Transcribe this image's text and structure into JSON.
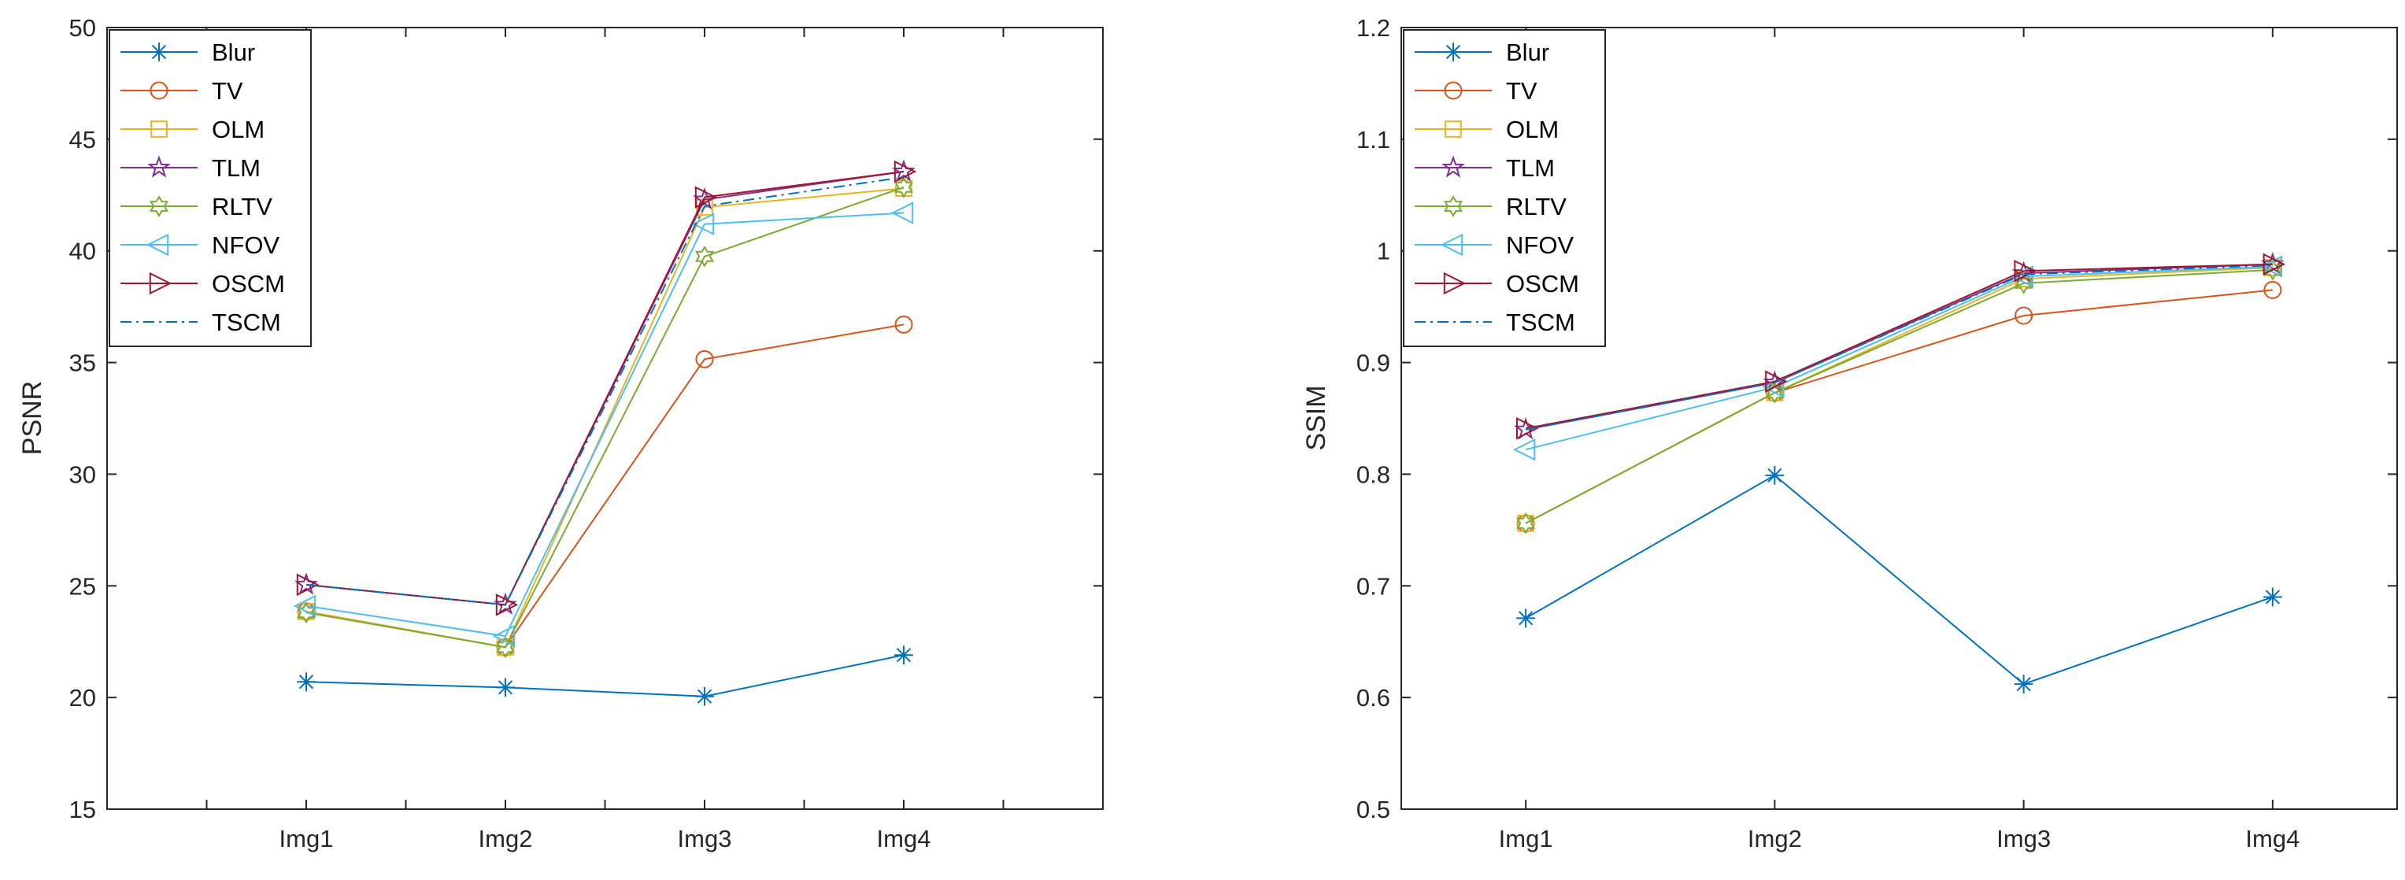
{
  "colors": {
    "Blur": "#0072BD",
    "TV": "#D95319",
    "OLM": "#EDB120",
    "TLM": "#7E2F8E",
    "RLTV": "#77AC30",
    "NFOV": "#4DBEEE",
    "OSCM": "#A2142F",
    "TSCM": "#0072BD",
    "axis": "#262626",
    "background": "#ffffff"
  },
  "chart_data": [
    {
      "type": "line",
      "title": "",
      "xlabel": "",
      "ylabel": "PSNR",
      "categories": [
        "Img1",
        "Img2",
        "Img3",
        "Img4"
      ],
      "x_range": [
        0,
        5
      ],
      "ylim": [
        15,
        50
      ],
      "yticks": [
        "15",
        "20",
        "25",
        "30",
        "35",
        "40",
        "45",
        "50"
      ],
      "legend_position": "top-left",
      "series": [
        {
          "name": "Blur",
          "marker": "asterisk",
          "line": "solid",
          "values": [
            20.7,
            20.45,
            20.05,
            21.9
          ]
        },
        {
          "name": "TV",
          "marker": "circle",
          "line": "solid",
          "values": [
            23.85,
            22.25,
            35.15,
            36.7
          ]
        },
        {
          "name": "OLM",
          "marker": "square",
          "line": "solid",
          "values": [
            23.85,
            22.25,
            41.95,
            42.8
          ]
        },
        {
          "name": "TLM",
          "marker": "star",
          "line": "solid",
          "values": [
            25.05,
            24.15,
            42.3,
            43.55
          ]
        },
        {
          "name": "RLTV",
          "marker": "hexagram",
          "line": "solid",
          "values": [
            23.8,
            22.25,
            39.75,
            42.85
          ]
        },
        {
          "name": "NFOV",
          "marker": "triangle-left",
          "line": "solid",
          "values": [
            24.1,
            22.75,
            41.2,
            41.7
          ]
        },
        {
          "name": "OSCM",
          "marker": "triangle-right",
          "line": "solid",
          "values": [
            25.05,
            24.15,
            42.4,
            43.55
          ]
        },
        {
          "name": "TSCM",
          "marker": "none",
          "line": "dashdot",
          "values": [
            25.05,
            24.15,
            42.0,
            43.3
          ]
        }
      ]
    },
    {
      "type": "line",
      "title": "",
      "xlabel": "",
      "ylabel": "SSIM",
      "categories": [
        "Img1",
        "Img2",
        "Img3",
        "Img4"
      ],
      "x_range": [
        0.5,
        4.5
      ],
      "ylim": [
        0.5,
        1.2
      ],
      "yticks": [
        "0.5",
        "0.6",
        "0.7",
        "0.8",
        "0.9",
        "1",
        "1.1",
        "1.2"
      ],
      "legend_position": "top-left",
      "series": [
        {
          "name": "Blur",
          "marker": "asterisk",
          "line": "solid",
          "values": [
            0.671,
            0.799,
            0.612,
            0.69
          ]
        },
        {
          "name": "TV",
          "marker": "circle",
          "line": "solid",
          "values": [
            0.756,
            0.873,
            0.942,
            0.965
          ]
        },
        {
          "name": "OLM",
          "marker": "square",
          "line": "solid",
          "values": [
            0.756,
            0.873,
            0.975,
            0.985
          ]
        },
        {
          "name": "TLM",
          "marker": "star",
          "line": "solid",
          "values": [
            0.84,
            0.882,
            0.98,
            0.988
          ]
        },
        {
          "name": "RLTV",
          "marker": "hexagram",
          "line": "solid",
          "values": [
            0.756,
            0.873,
            0.971,
            0.983
          ]
        },
        {
          "name": "NFOV",
          "marker": "triangle-left",
          "line": "solid",
          "values": [
            0.822,
            0.878,
            0.977,
            0.986
          ]
        },
        {
          "name": "OSCM",
          "marker": "triangle-right",
          "line": "solid",
          "values": [
            0.841,
            0.883,
            0.982,
            0.988
          ]
        },
        {
          "name": "TSCM",
          "marker": "none",
          "line": "dashdot",
          "values": [
            0.84,
            0.882,
            0.979,
            0.987
          ]
        }
      ]
    }
  ]
}
